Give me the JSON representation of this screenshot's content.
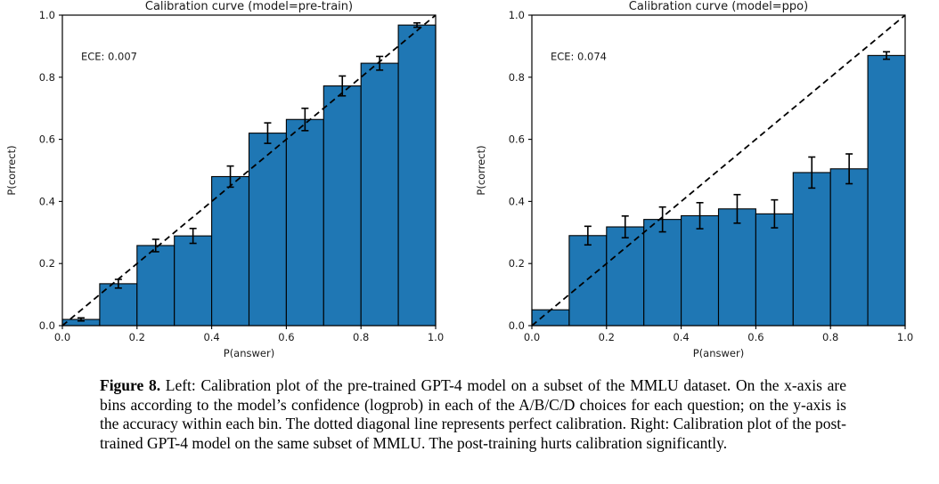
{
  "figure": {
    "caption_label": "Figure 8.",
    "caption_text": " Left: Calibration plot of the pre-trained GPT-4 model on a subset of the MMLU dataset. On the x-axis are bins according to the model’s confidence (logprob) in each of the A/B/C/D choices for each question; on the y-axis is the accuracy within each bin. The dotted diagonal line represents perfect calibration. Right: Calibration plot of the post-trained GPT-4 model on the same subset of MMLU. The post-training hurts calibration significantly."
  },
  "chart_data": [
    {
      "type": "bar",
      "title": "Calibration curve (model=pre-train)",
      "annotation": "ECE: 0.007",
      "xlabel": "P(answer)",
      "ylabel": "P(correct)",
      "xlim": [
        0.0,
        1.0
      ],
      "ylim": [
        0.0,
        1.0
      ],
      "xtick_labels": [
        "0.0",
        "0.2",
        "0.4",
        "0.6",
        "0.8",
        "1.0"
      ],
      "ytick_labels": [
        "0.0",
        "0.2",
        "0.4",
        "0.6",
        "0.8",
        "1.0"
      ],
      "xtick_values": [
        0.0,
        0.2,
        0.4,
        0.6,
        0.8,
        1.0
      ],
      "ytick_values": [
        0.0,
        0.2,
        0.4,
        0.6,
        0.8,
        1.0
      ],
      "bin_edges": [
        0.0,
        0.1,
        0.2,
        0.3,
        0.4,
        0.5,
        0.6,
        0.7,
        0.8,
        0.9,
        1.0
      ],
      "values": [
        0.02,
        0.135,
        0.258,
        0.289,
        0.48,
        0.62,
        0.664,
        0.772,
        0.845,
        0.968
      ],
      "errors": [
        0.005,
        0.014,
        0.02,
        0.024,
        0.034,
        0.033,
        0.036,
        0.032,
        0.022,
        0.007
      ],
      "bar_color": "#1f77b4",
      "bar_edge_color": "#000000",
      "diagonal_line": "perfect-calibration (0,0)-(1,1), black dashed",
      "grid": false,
      "legend": "none"
    },
    {
      "type": "bar",
      "title": "Calibration curve (model=ppo)",
      "annotation": "ECE: 0.074",
      "xlabel": "P(answer)",
      "ylabel": "P(correct)",
      "xlim": [
        0.0,
        1.0
      ],
      "ylim": [
        0.0,
        1.0
      ],
      "xtick_labels": [
        "0.0",
        "0.2",
        "0.4",
        "0.6",
        "0.8",
        "1.0"
      ],
      "ytick_labels": [
        "0.0",
        "0.2",
        "0.4",
        "0.6",
        "0.8",
        "1.0"
      ],
      "xtick_values": [
        0.0,
        0.2,
        0.4,
        0.6,
        0.8,
        1.0
      ],
      "ytick_values": [
        0.0,
        0.2,
        0.4,
        0.6,
        0.8,
        1.0
      ],
      "bin_edges": [
        0.0,
        0.1,
        0.2,
        0.3,
        0.4,
        0.5,
        0.6,
        0.7,
        0.8,
        0.9,
        1.0
      ],
      "values": [
        0.051,
        0.29,
        0.318,
        0.342,
        0.354,
        0.376,
        0.36,
        0.493,
        0.505,
        0.87
      ],
      "errors": [
        0,
        0.03,
        0.035,
        0.04,
        0.042,
        0.046,
        0.045,
        0.05,
        0.048,
        0.012
      ],
      "bar_color": "#1f77b4",
      "bar_edge_color": "#000000",
      "diagonal_line": "perfect-calibration (0,0)-(1,1), black dashed",
      "grid": false,
      "legend": "none"
    }
  ]
}
